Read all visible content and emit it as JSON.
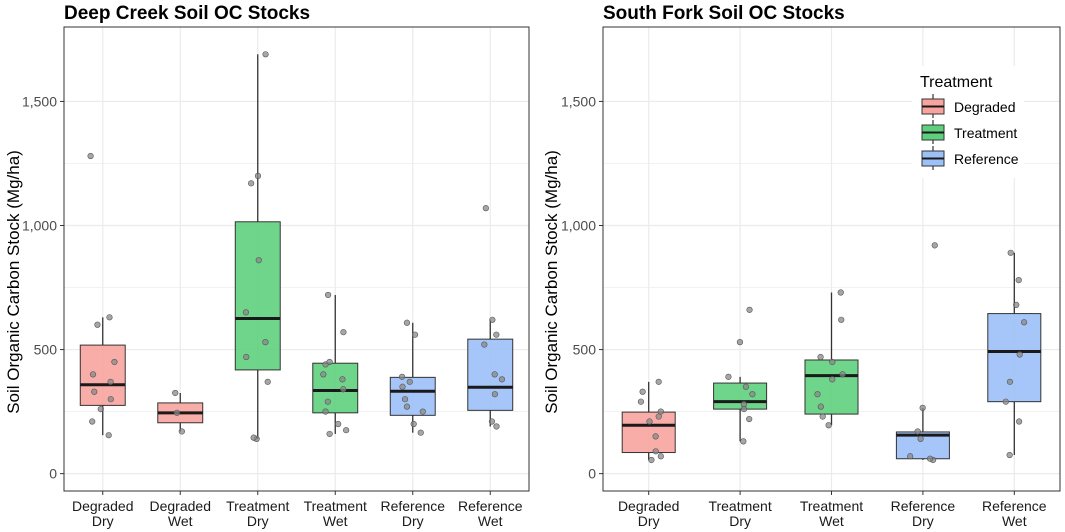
{
  "colors": {
    "degraded": "#F8A49E",
    "treatment": "#5ED07D",
    "reference": "#9CC0F8",
    "grid": "#EBEBEB",
    "panel_border": "#333333",
    "point": "#888888"
  },
  "legend": {
    "title": "Treatment",
    "position": "top-right of South Fork panel",
    "items": [
      {
        "label": "Degraded",
        "group": "degraded"
      },
      {
        "label": "Treatment",
        "group": "treatment"
      },
      {
        "label": "Reference",
        "group": "reference"
      }
    ]
  },
  "chart_data": [
    {
      "type": "box",
      "title": "Deep Creek Soil OC Stocks",
      "ylabel": "Soil Organic Carbon Stock (Mg/ha)",
      "xlabel": "",
      "ylim": [
        -70,
        1800
      ],
      "yticks": [
        0,
        500,
        1000,
        1500
      ],
      "ytick_labels": [
        "0",
        "500",
        "1,000",
        "1,500"
      ],
      "grid": true,
      "categories": [
        {
          "line1": "Degraded",
          "line2": "Dry",
          "group": "degraded",
          "q1": 275,
          "median": 358,
          "q3": 518,
          "whisker_low": 155,
          "whisker_high": 630,
          "points": [
            155,
            210,
            260,
            300,
            330,
            370,
            400,
            450,
            600,
            630,
            1280
          ]
        },
        {
          "line1": "Degraded",
          "line2": "Wet",
          "group": "degraded",
          "q1": 205,
          "median": 245,
          "q3": 285,
          "whisker_low": 170,
          "whisker_high": 325,
          "points": [
            170,
            245,
            325
          ]
        },
        {
          "line1": "Treatment",
          "line2": "Dry",
          "group": "treatment",
          "q1": 418,
          "median": 625,
          "q3": 1015,
          "whisker_low": 140,
          "whisker_high": 1690,
          "points": [
            140,
            145,
            370,
            470,
            530,
            650,
            860,
            1170,
            1200,
            1690
          ]
        },
        {
          "line1": "Treatment",
          "line2": "Wet",
          "group": "treatment",
          "q1": 245,
          "median": 335,
          "q3": 445,
          "whisker_low": 160,
          "whisker_high": 720,
          "points": [
            160,
            175,
            200,
            250,
            290,
            340,
            380,
            400,
            440,
            450,
            570,
            720
          ]
        },
        {
          "line1": "Reference",
          "line2": "Dry",
          "group": "reference",
          "q1": 235,
          "median": 332,
          "q3": 388,
          "whisker_low": 165,
          "whisker_high": 608,
          "points": [
            165,
            200,
            250,
            270,
            300,
            350,
            370,
            390,
            560,
            608
          ]
        },
        {
          "line1": "Reference",
          "line2": "Wet",
          "group": "reference",
          "q1": 255,
          "median": 348,
          "q3": 542,
          "whisker_low": 190,
          "whisker_high": 620,
          "points": [
            190,
            210,
            320,
            380,
            400,
            520,
            560,
            620,
            1070
          ]
        }
      ]
    },
    {
      "type": "box",
      "title": "South Fork Soil OC Stocks",
      "ylabel": "Soil Organic Carbon Stock (Mg/ha)",
      "xlabel": "",
      "ylim": [
        -70,
        1800
      ],
      "yticks": [
        0,
        500,
        1000,
        1500
      ],
      "ytick_labels": [
        "0",
        "500",
        "1,000",
        "1,500"
      ],
      "grid": true,
      "categories": [
        {
          "line1": "Degraded",
          "line2": "Dry",
          "group": "degraded",
          "q1": 85,
          "median": 195,
          "q3": 248,
          "whisker_low": 55,
          "whisker_high": 370,
          "points": [
            55,
            70,
            90,
            150,
            210,
            230,
            250,
            290,
            330,
            370
          ]
        },
        {
          "line1": "Treatment",
          "line2": "Dry",
          "group": "treatment",
          "q1": 260,
          "median": 290,
          "q3": 365,
          "whisker_low": 130,
          "whisker_high": 390,
          "points": [
            130,
            220,
            260,
            280,
            320,
            350,
            390,
            530,
            660
          ]
        },
        {
          "line1": "Treatment",
          "line2": "Wet",
          "group": "treatment",
          "q1": 240,
          "median": 395,
          "q3": 458,
          "whisker_low": 195,
          "whisker_high": 730,
          "points": [
            195,
            230,
            270,
            320,
            380,
            400,
            450,
            470,
            620,
            730
          ]
        },
        {
          "line1": "Reference",
          "line2": "Dry",
          "group": "reference",
          "q1": 60,
          "median": 155,
          "q3": 168,
          "whisker_low": 55,
          "whisker_high": 265,
          "points": [
            55,
            60,
            70,
            140,
            170,
            265,
            920
          ]
        },
        {
          "line1": "Reference",
          "line2": "Wet",
          "group": "reference",
          "q1": 290,
          "median": 492,
          "q3": 645,
          "whisker_low": 75,
          "whisker_high": 890,
          "points": [
            75,
            210,
            290,
            370,
            480,
            610,
            680,
            780,
            890
          ]
        }
      ]
    }
  ]
}
